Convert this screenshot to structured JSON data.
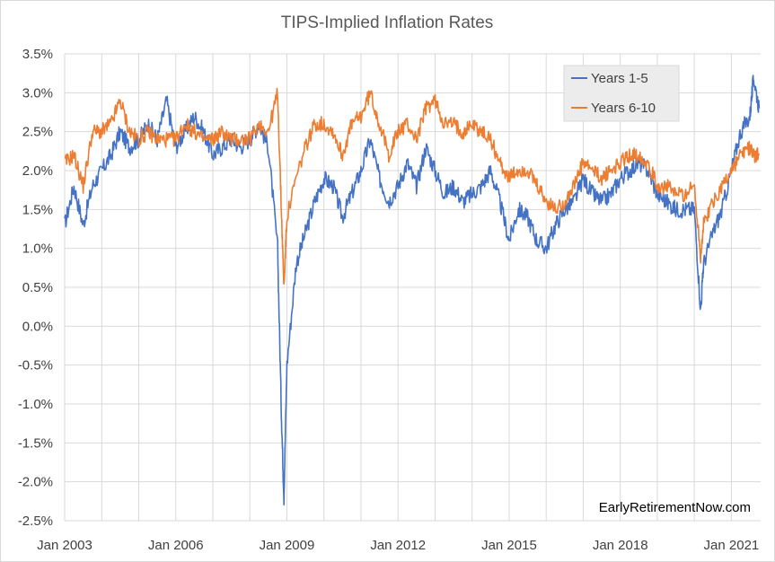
{
  "chart_data": {
    "type": "line",
    "title": "TIPS-Implied Inflation Rates",
    "xlabel": "",
    "ylabel": "",
    "x_ticks": [
      "Jan 2003",
      "Jan 2006",
      "Jan 2009",
      "Jan 2012",
      "Jan 2015",
      "Jan 2018",
      "Jan 2021"
    ],
    "y_ticks": [
      "3.5%",
      "3.0%",
      "2.5%",
      "2.0%",
      "1.5%",
      "1.0%",
      "0.5%",
      "0.0%",
      "-0.5%",
      "-1.0%",
      "-1.5%",
      "-2.0%",
      "-2.5%"
    ],
    "xlim": [
      "2003-01",
      "2021-09"
    ],
    "ylim": [
      -2.5,
      3.5
    ],
    "grid": "vertical-and-horizontal",
    "legend_position": "top-right",
    "watermark": "EarlyRetirementNow.com",
    "series": [
      {
        "name": "Years 1-5",
        "color": "#4472c4",
        "points": [
          [
            2003.0,
            1.3
          ],
          [
            2003.25,
            1.8
          ],
          [
            2003.5,
            1.3
          ],
          [
            2003.75,
            1.8
          ],
          [
            2004.0,
            2.0
          ],
          [
            2004.25,
            2.2
          ],
          [
            2004.5,
            2.5
          ],
          [
            2004.75,
            2.3
          ],
          [
            2005.0,
            2.4
          ],
          [
            2005.25,
            2.6
          ],
          [
            2005.5,
            2.4
          ],
          [
            2005.75,
            2.9
          ],
          [
            2006.0,
            2.3
          ],
          [
            2006.25,
            2.5
          ],
          [
            2006.5,
            2.7
          ],
          [
            2006.75,
            2.5
          ],
          [
            2007.0,
            2.2
          ],
          [
            2007.25,
            2.3
          ],
          [
            2007.5,
            2.4
          ],
          [
            2007.75,
            2.3
          ],
          [
            2008.0,
            2.4
          ],
          [
            2008.25,
            2.6
          ],
          [
            2008.5,
            2.3
          ],
          [
            2008.75,
            1.0
          ],
          [
            2008.85,
            -1.1
          ],
          [
            2008.92,
            -2.2
          ],
          [
            2009.0,
            -0.5
          ],
          [
            2009.25,
            0.8
          ],
          [
            2009.5,
            1.2
          ],
          [
            2009.75,
            1.6
          ],
          [
            2010.0,
            1.9
          ],
          [
            2010.25,
            1.8
          ],
          [
            2010.5,
            1.4
          ],
          [
            2010.75,
            1.7
          ],
          [
            2011.0,
            2.0
          ],
          [
            2011.25,
            2.4
          ],
          [
            2011.5,
            1.9
          ],
          [
            2011.75,
            1.6
          ],
          [
            2012.0,
            1.8
          ],
          [
            2012.25,
            2.1
          ],
          [
            2012.5,
            1.8
          ],
          [
            2012.75,
            2.3
          ],
          [
            2013.0,
            2.0
          ],
          [
            2013.25,
            1.7
          ],
          [
            2013.5,
            1.8
          ],
          [
            2013.75,
            1.6
          ],
          [
            2014.0,
            1.7
          ],
          [
            2014.25,
            1.8
          ],
          [
            2014.5,
            2.0
          ],
          [
            2014.75,
            1.6
          ],
          [
            2015.0,
            1.1
          ],
          [
            2015.25,
            1.5
          ],
          [
            2015.5,
            1.4
          ],
          [
            2015.75,
            1.1
          ],
          [
            2016.0,
            1.0
          ],
          [
            2016.25,
            1.3
          ],
          [
            2016.5,
            1.5
          ],
          [
            2016.75,
            1.6
          ],
          [
            2017.0,
            1.9
          ],
          [
            2017.25,
            1.7
          ],
          [
            2017.5,
            1.6
          ],
          [
            2017.75,
            1.7
          ],
          [
            2018.0,
            1.9
          ],
          [
            2018.25,
            2.0
          ],
          [
            2018.5,
            2.1
          ],
          [
            2018.75,
            2.0
          ],
          [
            2019.0,
            1.7
          ],
          [
            2019.25,
            1.6
          ],
          [
            2019.5,
            1.5
          ],
          [
            2019.75,
            1.5
          ],
          [
            2020.0,
            1.5
          ],
          [
            2020.17,
            0.2
          ],
          [
            2020.25,
            0.8
          ],
          [
            2020.5,
            1.2
          ],
          [
            2020.75,
            1.5
          ],
          [
            2021.0,
            2.0
          ],
          [
            2021.25,
            2.5
          ],
          [
            2021.5,
            2.7
          ],
          [
            2021.6,
            3.2
          ],
          [
            2021.75,
            2.8
          ]
        ]
      },
      {
        "name": "Years 6-10",
        "color": "#ed7d31",
        "points": [
          [
            2003.0,
            2.1
          ],
          [
            2003.25,
            2.2
          ],
          [
            2003.5,
            1.8
          ],
          [
            2003.75,
            2.5
          ],
          [
            2004.0,
            2.5
          ],
          [
            2004.25,
            2.6
          ],
          [
            2004.5,
            2.9
          ],
          [
            2004.75,
            2.5
          ],
          [
            2005.0,
            2.4
          ],
          [
            2005.25,
            2.5
          ],
          [
            2005.5,
            2.4
          ],
          [
            2005.75,
            2.4
          ],
          [
            2006.0,
            2.4
          ],
          [
            2006.25,
            2.6
          ],
          [
            2006.5,
            2.5
          ],
          [
            2006.75,
            2.4
          ],
          [
            2007.0,
            2.4
          ],
          [
            2007.25,
            2.5
          ],
          [
            2007.5,
            2.4
          ],
          [
            2007.75,
            2.4
          ],
          [
            2008.0,
            2.4
          ],
          [
            2008.25,
            2.6
          ],
          [
            2008.5,
            2.5
          ],
          [
            2008.75,
            3.0
          ],
          [
            2008.85,
            1.5
          ],
          [
            2008.92,
            0.5
          ],
          [
            2009.0,
            1.4
          ],
          [
            2009.25,
            1.9
          ],
          [
            2009.5,
            2.3
          ],
          [
            2009.75,
            2.6
          ],
          [
            2010.0,
            2.6
          ],
          [
            2010.25,
            2.5
          ],
          [
            2010.5,
            2.2
          ],
          [
            2010.75,
            2.6
          ],
          [
            2011.0,
            2.7
          ],
          [
            2011.25,
            3.0
          ],
          [
            2011.5,
            2.6
          ],
          [
            2011.75,
            2.2
          ],
          [
            2012.0,
            2.5
          ],
          [
            2012.25,
            2.6
          ],
          [
            2012.5,
            2.4
          ],
          [
            2012.75,
            2.8
          ],
          [
            2013.0,
            2.9
          ],
          [
            2013.25,
            2.6
          ],
          [
            2013.5,
            2.6
          ],
          [
            2013.75,
            2.5
          ],
          [
            2014.0,
            2.6
          ],
          [
            2014.25,
            2.5
          ],
          [
            2014.5,
            2.4
          ],
          [
            2014.75,
            2.1
          ],
          [
            2015.0,
            1.9
          ],
          [
            2015.25,
            2.0
          ],
          [
            2015.5,
            2.0
          ],
          [
            2015.75,
            1.8
          ],
          [
            2016.0,
            1.6
          ],
          [
            2016.25,
            1.5
          ],
          [
            2016.5,
            1.6
          ],
          [
            2016.75,
            1.8
          ],
          [
            2017.0,
            2.1
          ],
          [
            2017.25,
            2.0
          ],
          [
            2017.5,
            1.9
          ],
          [
            2017.75,
            2.0
          ],
          [
            2018.0,
            2.1
          ],
          [
            2018.25,
            2.2
          ],
          [
            2018.5,
            2.2
          ],
          [
            2018.75,
            2.1
          ],
          [
            2019.0,
            1.8
          ],
          [
            2019.25,
            1.8
          ],
          [
            2019.5,
            1.7
          ],
          [
            2019.75,
            1.7
          ],
          [
            2020.0,
            1.8
          ],
          [
            2020.17,
            0.9
          ],
          [
            2020.25,
            1.3
          ],
          [
            2020.5,
            1.6
          ],
          [
            2020.75,
            1.8
          ],
          [
            2021.0,
            2.0
          ],
          [
            2021.25,
            2.2
          ],
          [
            2021.5,
            2.3
          ],
          [
            2021.6,
            2.2
          ],
          [
            2021.75,
            2.2
          ]
        ]
      }
    ]
  }
}
